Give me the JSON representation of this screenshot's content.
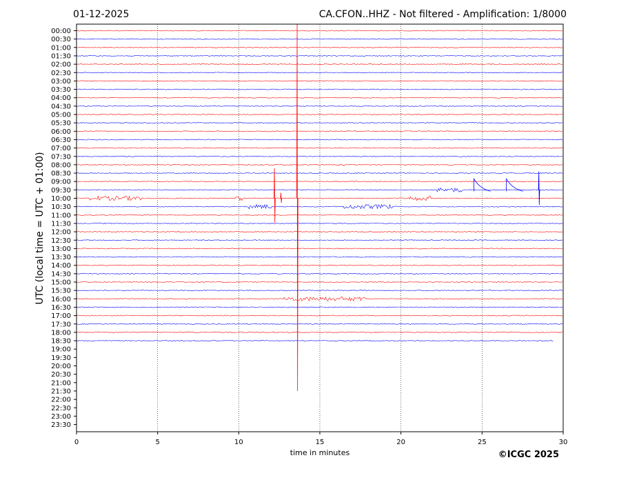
{
  "header": {
    "date": "01-12-2025",
    "station_title": "CA.CFON..HHZ - Not filtered - Amplification: 1/8000"
  },
  "copyright": "©ICGC 2025",
  "colors": {
    "odd_trace": "#ff0000",
    "even_trace": "#0000ff",
    "grid": "#000000"
  },
  "chart_data": {
    "type": "line",
    "title": "CA.CFON..HHZ - Not filtered - Amplification: 1/8000",
    "xlabel": "time in minutes",
    "ylabel": "UTC (local time = UTC + 01:00)",
    "xlim": [
      0,
      30
    ],
    "x_ticks": [
      0,
      5,
      10,
      15,
      20,
      25,
      30
    ],
    "grid": "vertical dotted at x ticks",
    "row_labels": [
      "00:00",
      "00:30",
      "01:00",
      "01:30",
      "02:00",
      "02:30",
      "03:00",
      "03:30",
      "04:00",
      "04:30",
      "05:00",
      "05:30",
      "06:00",
      "06:30",
      "07:00",
      "07:30",
      "08:00",
      "08:30",
      "09:00",
      "09:30",
      "10:00",
      "10:30",
      "11:00",
      "11:30",
      "12:00",
      "12:30",
      "13:00",
      "13:30",
      "14:00",
      "14:30",
      "15:00",
      "15:30",
      "16:00",
      "16:30",
      "17:00",
      "17:30",
      "18:00",
      "18:30",
      "19:00",
      "19:30",
      "20:00",
      "20:30",
      "21:00",
      "21:30",
      "22:00",
      "22:30",
      "23:00",
      "23:30"
    ],
    "trace_colors_alternating": [
      "red",
      "blue"
    ],
    "recorded_rows": 38,
    "last_row_end_minute": 29.4,
    "events": [
      {
        "row": "10:00",
        "minute_start": 0.8,
        "minute_end": 4.0,
        "kind": "burst"
      },
      {
        "row": "10:00",
        "minute_start": 9.8,
        "minute_end": 10.2,
        "kind": "burst"
      },
      {
        "row": "10:00",
        "minute": 12.2,
        "kind": "spike",
        "amplitude_rows": 6.5
      },
      {
        "row": "10:00",
        "minute": 12.6,
        "kind": "spike",
        "amplitude_rows": 1.2
      },
      {
        "row": "10:00",
        "minute": 13.6,
        "kind": "spike",
        "amplitude_rows": 23
      },
      {
        "row": "10:00",
        "minute_start": 20.4,
        "minute_end": 21.8,
        "kind": "burst"
      },
      {
        "row": "09:30",
        "minute_start": 22.2,
        "minute_end": 23.8,
        "kind": "burst"
      },
      {
        "row": "09:30",
        "minute": 24.5,
        "kind": "step"
      },
      {
        "row": "09:30",
        "minute": 26.5,
        "kind": "step"
      },
      {
        "row": "09:30",
        "minute": 28.5,
        "kind": "spike",
        "amplitude_rows": 4
      },
      {
        "row": "10:30",
        "minute_start": 10.5,
        "minute_end": 12.0,
        "kind": "burst"
      },
      {
        "row": "10:30",
        "minute_start": 16.5,
        "minute_end": 19.5,
        "kind": "burst"
      },
      {
        "row": "16:00",
        "minute_start": 12.8,
        "minute_end": 17.8,
        "kind": "burst"
      }
    ]
  }
}
